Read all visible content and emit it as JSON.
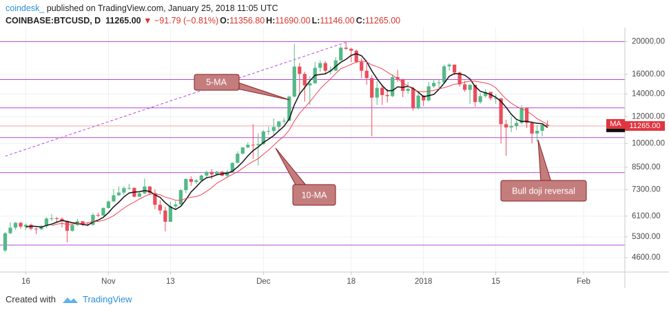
{
  "header": {
    "author": "coindesk_",
    "published": "published on TradingView.com, January 25, 2018 11:05 UTC",
    "symbol": "COINBASE:BTCUSD, D",
    "last": "11265.00",
    "change": "▼ −91.79 (−0.81%)",
    "ohlc": [
      {
        "label": "O:",
        "value": "11356.80"
      },
      {
        "label": "H:",
        "value": "11690.00"
      },
      {
        "label": "L:",
        "value": "11146.00"
      },
      {
        "label": "C:",
        "value": "11265.00"
      }
    ]
  },
  "chart_data": {
    "type": "candlestick",
    "log_scale": true,
    "grid": true,
    "up_color": "#53b987",
    "down_color": "#eb4d5c",
    "x": [
      "2017-10-12",
      "2017-10-13",
      "2017-10-14",
      "2017-10-15",
      "2017-10-16",
      "2017-10-17",
      "2017-10-18",
      "2017-10-19",
      "2017-10-20",
      "2017-10-21",
      "2017-10-22",
      "2017-10-23",
      "2017-10-24",
      "2017-10-25",
      "2017-10-26",
      "2017-10-27",
      "2017-10-28",
      "2017-10-29",
      "2017-10-30",
      "2017-10-31",
      "2017-11-01",
      "2017-11-02",
      "2017-11-03",
      "2017-11-04",
      "2017-11-05",
      "2017-11-06",
      "2017-11-07",
      "2017-11-08",
      "2017-11-09",
      "2017-11-10",
      "2017-11-11",
      "2017-11-12",
      "2017-11-13",
      "2017-11-14",
      "2017-11-15",
      "2017-11-16",
      "2017-11-17",
      "2017-11-18",
      "2017-11-19",
      "2017-11-20",
      "2017-11-21",
      "2017-11-22",
      "2017-11-23",
      "2017-11-24",
      "2017-11-25",
      "2017-11-26",
      "2017-11-27",
      "2017-11-28",
      "2017-11-29",
      "2017-11-30",
      "2017-12-01",
      "2017-12-02",
      "2017-12-03",
      "2017-12-04",
      "2017-12-05",
      "2017-12-06",
      "2017-12-07",
      "2017-12-08",
      "2017-12-09",
      "2017-12-10",
      "2017-12-11",
      "2017-12-12",
      "2017-12-13",
      "2017-12-14",
      "2017-12-15",
      "2017-12-16",
      "2017-12-17",
      "2017-12-18",
      "2017-12-19",
      "2017-12-20",
      "2017-12-21",
      "2017-12-22",
      "2017-12-23",
      "2017-12-24",
      "2017-12-25",
      "2017-12-26",
      "2017-12-27",
      "2017-12-28",
      "2017-12-29",
      "2017-12-30",
      "2017-12-31",
      "2018-01-01",
      "2018-01-02",
      "2018-01-03",
      "2018-01-04",
      "2018-01-05",
      "2018-01-06",
      "2018-01-07",
      "2018-01-08",
      "2018-01-09",
      "2018-01-10",
      "2018-01-11",
      "2018-01-12",
      "2018-01-13",
      "2018-01-14",
      "2018-01-15",
      "2018-01-16",
      "2018-01-17",
      "2018-01-18",
      "2018-01-19",
      "2018-01-20",
      "2018-01-21",
      "2018-01-22",
      "2018-01-23",
      "2018-01-24",
      "2018-01-25"
    ],
    "open": [
      4830,
      5430,
      5640,
      5830,
      5680,
      5750,
      5600,
      5580,
      5700,
      6000,
      6010,
      5990,
      5900,
      5520,
      5740,
      5890,
      5770,
      5750,
      6150,
      6130,
      6450,
      6740,
      7030,
      7160,
      7380,
      7390,
      6960,
      7120,
      7460,
      7140,
      6590,
      6340,
      5870,
      6520,
      6600,
      7280,
      7850,
      7700,
      7780,
      8040,
      8240,
      8100,
      8250,
      8030,
      8240,
      8760,
      9330,
      9740,
      9910,
      9880,
      9950,
      10850,
      10890,
      11190,
      11610,
      11670,
      13750,
      16870,
      16050,
      14840,
      15060,
      16730,
      17280,
      16400,
      16410,
      17600,
      19180,
      19040,
      18790,
      17420,
      16400,
      15600,
      13660,
      14600,
      13900,
      13800,
      15700,
      15500,
      14300,
      14500,
      12700,
      13850,
      13400,
      14750,
      15100,
      15150,
      16900,
      17100,
      16200,
      14950,
      14400,
      14900,
      13250,
      13800,
      14200,
      13600,
      13600,
      11400,
      11150,
      11250,
      11500,
      12750,
      11500,
      10700,
      10900,
      11356.8
    ],
    "high": [
      5480,
      5850,
      5860,
      5860,
      5800,
      5800,
      5640,
      5740,
      6060,
      6180,
      6070,
      6050,
      5920,
      5780,
      5990,
      5900,
      5850,
      6230,
      6250,
      6470,
      6780,
      7330,
      7470,
      7480,
      7600,
      7420,
      7200,
      7880,
      7480,
      7320,
      6800,
      6500,
      6720,
      6760,
      7330,
      7900,
      8000,
      7850,
      8100,
      8300,
      8400,
      8300,
      8300,
      8350,
      8800,
      9480,
      9750,
      10080,
      11400,
      10700,
      10950,
      11200,
      11850,
      11650,
      11900,
      13850,
      19700,
      17300,
      16300,
      15800,
      17400,
      17600,
      17500,
      16900,
      17990,
      19450,
      19890,
      19170,
      18950,
      17870,
      17300,
      15900,
      15300,
      14800,
      14500,
      16000,
      16500,
      15500,
      15200,
      14700,
      14200,
      13900,
      15200,
      15500,
      15400,
      17100,
      17250,
      17100,
      16300,
      15300,
      14950,
      14900,
      14100,
      14450,
      14200,
      14000,
      13600,
      11750,
      12000,
      11700,
      13000,
      12800,
      11650,
      11300,
      11400,
      11690
    ],
    "low": [
      4780,
      5400,
      5560,
      5600,
      5550,
      5540,
      5400,
      5550,
      5640,
      5900,
      5870,
      5650,
      5100,
      5480,
      5700,
      5700,
      5700,
      5710,
      6050,
      6100,
      6420,
      6740,
      7000,
      7050,
      7300,
      6940,
      6950,
      7080,
      7040,
      6390,
      6170,
      5500,
      5860,
      6420,
      6600,
      7120,
      7500,
      7600,
      7700,
      7970,
      7850,
      8050,
      8000,
      7900,
      8200,
      8760,
      9300,
      9680,
      9000,
      8600,
      9920,
      10600,
      10600,
      10900,
      11450,
      11650,
      13700,
      13900,
      13300,
      13000,
      15000,
      16300,
      16000,
      16000,
      16350,
      17550,
      18900,
      17400,
      17300,
      15600,
      14900,
      10500,
      13000,
      13000,
      13200,
      13700,
      15200,
      13700,
      14000,
      12500,
      12600,
      12900,
      13300,
      14600,
      14500,
      15100,
      16400,
      15900,
      14700,
      14200,
      13100,
      12850,
      13100,
      13650,
      13400,
      13100,
      10000,
      9200,
      10800,
      10950,
      11400,
      11100,
      10000,
      10100,
      10500,
      11146
    ],
    "close": [
      5430,
      5640,
      5830,
      5680,
      5750,
      5600,
      5580,
      5700,
      6000,
      6010,
      5990,
      5900,
      5520,
      5740,
      5890,
      5770,
      5750,
      6150,
      6130,
      6450,
      6740,
      7030,
      7160,
      7380,
      7390,
      6960,
      7120,
      7460,
      7140,
      6590,
      6340,
      5870,
      6520,
      6600,
      7280,
      7850,
      7700,
      7780,
      8040,
      8240,
      8100,
      8250,
      8030,
      8240,
      8760,
      9330,
      9740,
      9910,
      9880,
      9950,
      10850,
      10890,
      11190,
      11610,
      11670,
      13750,
      16870,
      16050,
      14840,
      15060,
      16730,
      17280,
      16400,
      16410,
      17600,
      19180,
      19040,
      18790,
      17420,
      16400,
      15600,
      13660,
      14600,
      13900,
      13800,
      15700,
      15500,
      14300,
      14500,
      12700,
      13850,
      13400,
      14750,
      15100,
      15150,
      16900,
      17100,
      16200,
      14950,
      14400,
      14900,
      13250,
      13800,
      14200,
      13600,
      13600,
      11400,
      11150,
      11250,
      11500,
      12750,
      11500,
      10700,
      10900,
      11357,
      11265
    ],
    "ma_lines": [
      {
        "name": "5-MA",
        "color": "#111111",
        "values": [
          null,
          null,
          null,
          null,
          5666,
          5700,
          5688,
          5662,
          5726,
          5778,
          5856,
          5920,
          5884,
          5832,
          5808,
          5764,
          5734,
          5860,
          5938,
          6050,
          6244,
          6500,
          6702,
          6952,
          7140,
          7184,
          7202,
          7262,
          7214,
          7054,
          6930,
          6680,
          6492,
          6384,
          6522,
          6824,
          7190,
          7442,
          7730,
          7922,
          7972,
          8082,
          8132,
          8172,
          8276,
          8522,
          8820,
          9196,
          9524,
          9762,
          10066,
          10296,
          10552,
          10898,
          11242,
          11822,
          13018,
          13990,
          14636,
          15314,
          15910,
          15992,
          16062,
          16376,
          16884,
          17374,
          17726,
          18204,
          18406,
          18166,
          17450,
          16374,
          15536,
          14832,
          14312,
          14332,
          14700,
          14640,
          14760,
          14540,
          14170,
          13750,
          13840,
          13960,
          14450,
          15060,
          15800,
          16090,
          16060,
          15910,
          15510,
          14740,
          14260,
          14110,
          13950,
          13690,
          13320,
          12790,
          12200,
          11780,
          11610,
          11630,
          11540,
          11470,
          11441,
          11144
        ]
      },
      {
        "name": "10-MA",
        "color": "#f0444f",
        "values": [
          null,
          null,
          null,
          null,
          null,
          null,
          null,
          null,
          null,
          5722,
          5778,
          5804,
          5773,
          5779,
          5793,
          5810,
          5827,
          5872,
          5885,
          5929,
          6004,
          6117,
          6281,
          6445,
          6595,
          6714,
          6851,
          6982,
          7083,
          7097,
          7057,
          6941,
          6877,
          6799,
          6788,
          6877,
          6935,
          6967,
          7057,
          7222,
          7398,
          7636,
          7787,
          7951,
          8099,
          8247,
          8451,
          8664,
          8848,
          9019,
          9294,
          9558,
          9874,
          10211,
          10502,
          10944,
          11657,
          12271,
          12767,
          13278,
          13866,
          14505,
          15026,
          15506,
          16099,
          16642,
          16859,
          17133,
          17391,
          17525,
          17412,
          17050,
          16870,
          16619,
          16239,
          15891,
          15537,
          15088,
          14796,
          14426,
          14251,
          14225,
          14240,
          14360,
          14495,
          14615,
          14775,
          14965,
          15010,
          15180,
          15285,
          15270,
          15175,
          15085,
          14930,
          14600,
          14030,
          13525,
          13155,
          12865,
          12650,
          12475,
          12165,
          11835,
          11611,
          11377
        ]
      }
    ],
    "levels": [
      20000,
      15450,
      12740,
      10410,
      8200,
      5010
    ],
    "level_color": "#b548d4",
    "trendline": {
      "x": [
        "2017-10-12",
        "2017-12-17"
      ],
      "values": [
        9170,
        19900
      ],
      "color": "#b548d4"
    },
    "price_tag": {
      "value": 11265,
      "label": "11265.00"
    },
    "ma_tag": "MA",
    "annotations": [
      "Bull doji reversal"
    ],
    "xlim": [
      "2017-10-11",
      "2018-02-09"
    ],
    "xticks": [
      {
        "value": "2017-10-16",
        "label": "16"
      },
      {
        "value": "2017-11-01",
        "label": "Nov"
      },
      {
        "value": "2017-11-13",
        "label": "13"
      },
      {
        "value": "2017-12-01",
        "label": "Dec"
      },
      {
        "value": "2017-12-18",
        "label": "18"
      },
      {
        "value": "2018-01-01",
        "label": "2018"
      },
      {
        "value": "2018-01-15",
        "label": "15"
      },
      {
        "value": "2018-02-01",
        "label": "Feb"
      }
    ],
    "ylim": [
      4170,
      22000
    ],
    "yticks": [
      {
        "value": 4600,
        "label": "4600.00"
      },
      {
        "value": 5300,
        "label": "5300.00"
      },
      {
        "value": 6100,
        "label": "6100.00"
      },
      {
        "value": 7300,
        "label": "7300.00"
      },
      {
        "value": 8500,
        "label": "8500.00"
      },
      {
        "value": 10000,
        "label": "10000.00"
      },
      {
        "value": 12000,
        "label": "12000.00"
      },
      {
        "value": 14000,
        "label": "14000.00"
      },
      {
        "value": 16000,
        "label": "16000.00"
      },
      {
        "value": 20000,
        "label": "20000.00"
      }
    ]
  },
  "footer": {
    "created": "Created with",
    "brand": "TradingView"
  }
}
